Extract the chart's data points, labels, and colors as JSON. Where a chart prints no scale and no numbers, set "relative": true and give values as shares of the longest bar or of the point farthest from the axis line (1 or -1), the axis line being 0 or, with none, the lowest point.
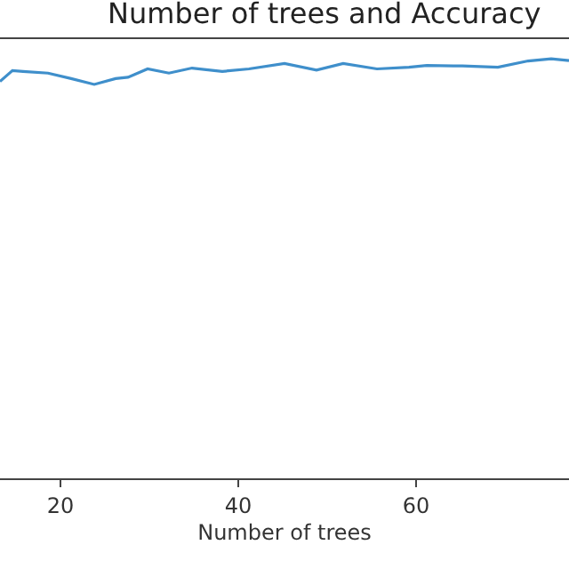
{
  "chart_data": {
    "type": "line",
    "title": "Number of trees and Accuracy",
    "xlabel": "Number of trees",
    "relative": true,
    "xlim": [
      13.2,
      77.2
    ],
    "xticks": [
      20,
      40,
      60
    ],
    "grid": false,
    "x": [
      13.2,
      14.6,
      15.8,
      18.6,
      21.2,
      23.8,
      26.2,
      27.6,
      29.8,
      32.2,
      34.8,
      38.2,
      41.2,
      45.2,
      48.8,
      51.8,
      55.6,
      59.2,
      61.2,
      65.2,
      69.2,
      72.6,
      75.2,
      77.2
    ],
    "series": [
      {
        "color": "#3f8fcb",
        "values": [
          0.946,
          0.972,
          0.97,
          0.966,
          0.953,
          0.939,
          0.953,
          0.956,
          0.976,
          0.966,
          0.978,
          0.97,
          0.976,
          0.989,
          0.973,
          0.989,
          0.976,
          0.98,
          0.984,
          0.983,
          0.98,
          0.995,
          1,
          0.996
        ]
      }
    ]
  }
}
